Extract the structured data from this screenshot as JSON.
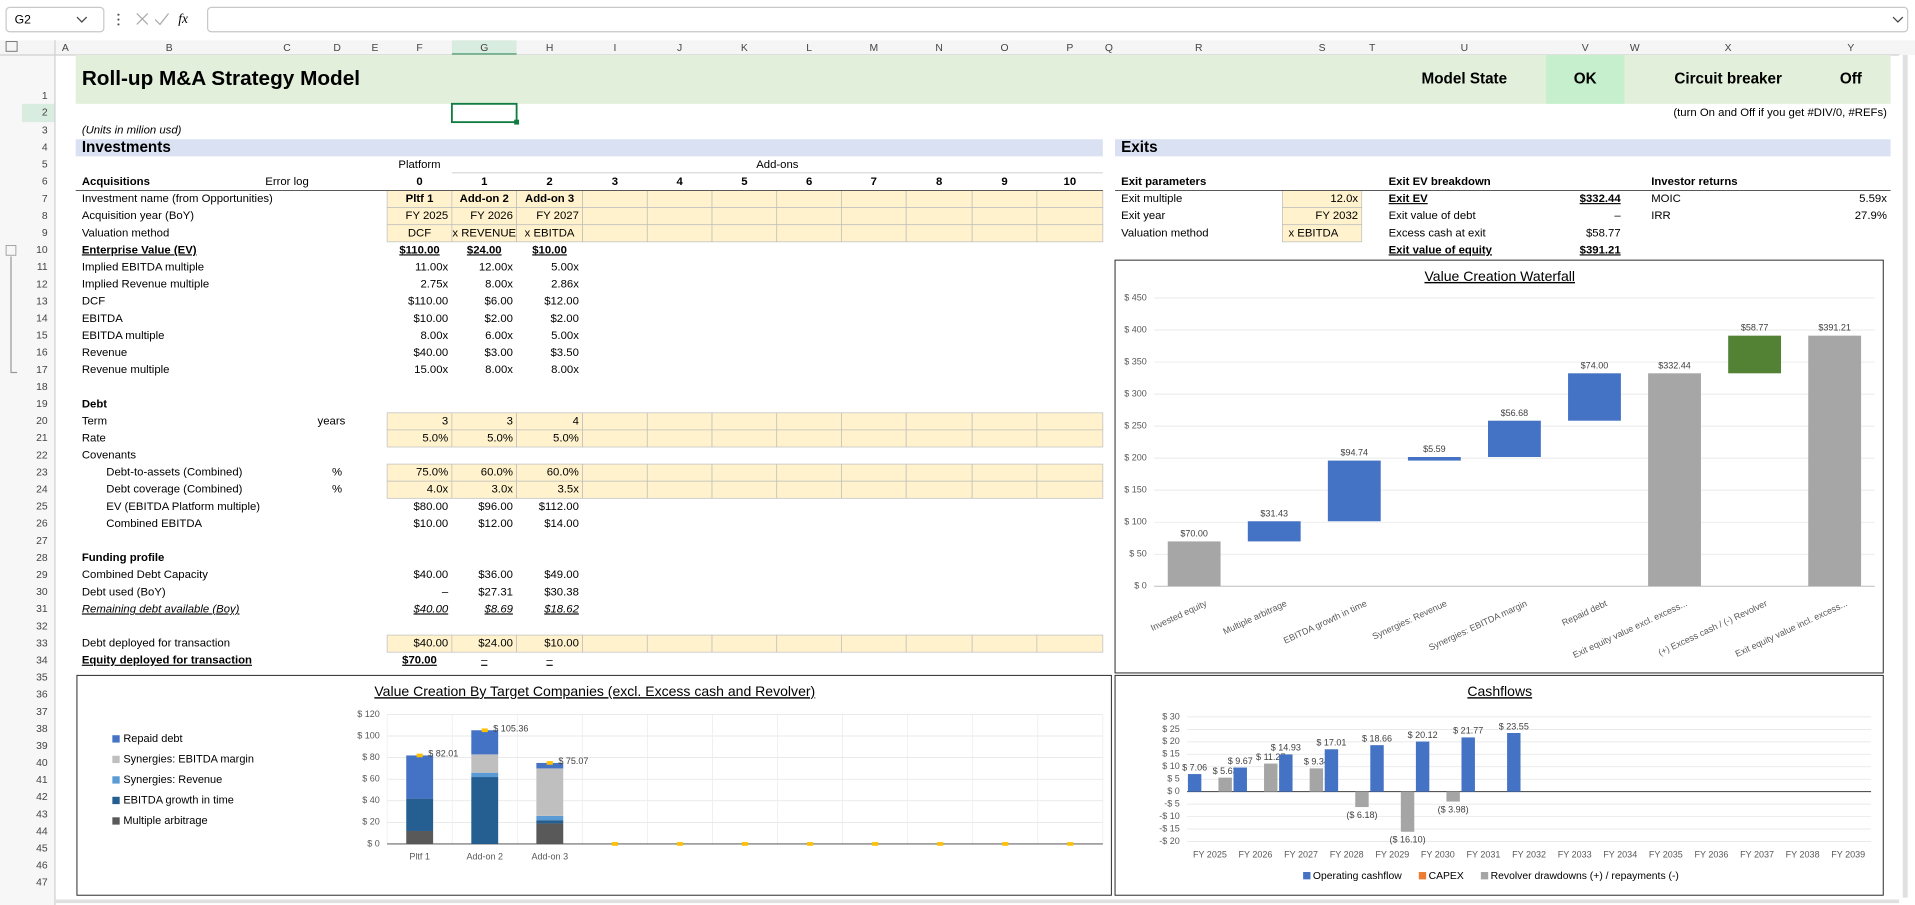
{
  "formula_bar": {
    "name_box": "G2",
    "function_icon": "fx"
  },
  "sheet": {
    "column_headers": [
      "A",
      "B",
      "C",
      "D",
      "E",
      "F",
      "G",
      "H",
      "I",
      "J",
      "K",
      "L",
      "M",
      "N",
      "O",
      "P",
      "Q",
      "R",
      "S",
      "T",
      "U",
      "V",
      "W",
      "X",
      "Y"
    ],
    "row_headers": [
      1,
      2,
      3,
      4,
      5,
      6,
      7,
      8,
      9,
      10,
      11,
      12,
      13,
      14,
      15,
      16,
      17,
      18,
      19,
      20,
      21,
      22,
      23,
      24,
      25,
      26,
      27,
      28,
      29,
      30,
      31,
      32,
      33,
      34,
      35,
      36,
      37,
      38,
      39,
      40,
      41,
      42,
      43,
      44,
      45,
      46,
      47
    ],
    "rows": {
      "1": {
        "B": "Roll-up M&A Strategy Model",
        "U": "Model State",
        "V": "OK",
        "X": "Circuit breaker",
        "Y": "Off"
      },
      "2": {
        "Y": "(turn On and Off if you get #DIV/0, #REFs)"
      },
      "3": {
        "B": "(Units in milion usd)"
      },
      "4": {
        "B": "Investments",
        "R": "Exits"
      },
      "5": {
        "F": "Platform",
        "G": "Add-ons"
      },
      "6": {
        "B": "Acquisitions",
        "C": "Error log",
        "F": 0,
        "G": 1,
        "H": 2,
        "I": 3,
        "J": 4,
        "K": 5,
        "L": 6,
        "M": 7,
        "N": 8,
        "O": 9,
        "P": 10,
        "R": "Exit parameters",
        "U": "Exit EV breakdown",
        "X": "Investor returns"
      },
      "7": {
        "B": "Investment name (from Opportunities)",
        "F": "Pltf 1",
        "G": "Add-on 2",
        "H": "Add-on 3",
        "R": "Exit multiple",
        "S": "12.0x",
        "U": "Exit EV",
        "V": "$332.44",
        "X": "MOIC",
        "Y": "5.59x"
      },
      "8": {
        "B": "Acquisition year (BoY)",
        "F": "FY 2025",
        "G": "FY 2026",
        "H": "FY 2027",
        "R": "Exit year",
        "S": "FY 2032",
        "U": "Exit value of debt",
        "V": "–",
        "X": "IRR",
        "Y": "27.9%"
      },
      "9": {
        "B": "Valuation method",
        "F": "DCF",
        "G": "x REVENUE",
        "H": "x EBITDA",
        "R": "Valuation method",
        "S": "x EBITDA",
        "U": "Excess cash at exit",
        "V": "$58.77"
      },
      "10": {
        "B": "Enterprise Value (EV)",
        "F": "$110.00",
        "G": "$24.00",
        "H": "$10.00",
        "U": "Exit value of equity",
        "V": "$391.21"
      },
      "11": {
        "B": "Implied EBITDA multiple",
        "F": "11.00x",
        "G": "12.00x",
        "H": "5.00x"
      },
      "12": {
        "B": "Implied Revenue multiple",
        "F": "2.75x",
        "G": "8.00x",
        "H": "2.86x"
      },
      "13": {
        "B": "DCF",
        "F": "$110.00",
        "G": "$6.00",
        "H": "$12.00"
      },
      "14": {
        "B": "EBITDA",
        "F": "$10.00",
        "G": "$2.00",
        "H": "$2.00"
      },
      "15": {
        "B": "EBITDA multiple",
        "F": "8.00x",
        "G": "6.00x",
        "H": "5.00x"
      },
      "16": {
        "B": "Revenue",
        "F": "$40.00",
        "G": "$3.00",
        "H": "$3.50"
      },
      "17": {
        "B": "Revenue multiple",
        "F": "15.00x",
        "G": "8.00x",
        "H": "8.00x"
      },
      "19": {
        "B": "Debt"
      },
      "20": {
        "B": "Term",
        "D": "years",
        "F": 3,
        "G": 3,
        "H": 4
      },
      "21": {
        "B": "Rate",
        "F": "5.0%",
        "G": "5.0%",
        "H": "5.0%"
      },
      "22": {
        "B": "Covenants"
      },
      "23": {
        "B": "Debt-to-assets (Combined)",
        "D": "%",
        "F": "75.0%",
        "G": "60.0%",
        "H": "60.0%"
      },
      "24": {
        "B": "Debt coverage (Combined)",
        "D": "%",
        "F": "4.0x",
        "G": "3.0x",
        "H": "3.5x"
      },
      "25": {
        "B": "EV (EBITDA Platform multiple)",
        "F": "$80.00",
        "G": "$96.00",
        "H": "$112.00"
      },
      "26": {
        "B": "Combined EBITDA",
        "F": "$10.00",
        "G": "$12.00",
        "H": "$14.00"
      },
      "28": {
        "B": "Funding profile"
      },
      "29": {
        "B": "Combined Debt Capacity",
        "F": "$40.00",
        "G": "$36.00",
        "H": "$49.00"
      },
      "30": {
        "B": "Debt used (BoY)",
        "F": "–",
        "G": "$27.31",
        "H": "$30.38"
      },
      "31": {
        "B": "Remaining debt available (Boy)",
        "F": "$40.00",
        "G": "$8.69",
        "H": "$18.62"
      },
      "33": {
        "B": "Debt deployed for transaction",
        "F": "$40.00",
        "G": "$24.00",
        "H": "$10.00"
      },
      "34": {
        "B": "Equity deployed for transaction",
        "F": "$70.00",
        "G": "–",
        "H": "–"
      }
    }
  },
  "charts": {
    "waterfall": {
      "type": "waterfall",
      "title": "Value Creation Waterfall",
      "categories": [
        "Invested equity",
        "Multiple arbitrage",
        "EBITDA growth in time",
        "Synergies: Revenue",
        "Synergies: EBITDA margin",
        "Repaid debt",
        "Exit equity value excl. excess...",
        "(+) Excess cash / (-) Revolver",
        "Exit equity value incl. excess..."
      ],
      "values": [
        70,
        31.43,
        94.74,
        5.59,
        56.68,
        74,
        332.44,
        58.77,
        391.21
      ],
      "value_labels": [
        "$70.00",
        "$31.43",
        "$94.74",
        "$5.59",
        "$56.68",
        "$74.00",
        "$332.44",
        "$58.77",
        "$391.21"
      ],
      "bar_kinds": [
        "total",
        "increase",
        "increase",
        "increase",
        "increase",
        "increase",
        "total",
        "increase",
        "total"
      ],
      "colors": [
        "#a6a6a6",
        "#4472c4",
        "#4472c4",
        "#4472c4",
        "#4472c4",
        "#4472c4",
        "#a6a6a6",
        "#548235",
        "#a6a6a6"
      ],
      "ylim": [
        0,
        450
      ],
      "yticks": [
        {
          "value": 0,
          "label": "$ 0"
        },
        {
          "value": 50,
          "label": "$ 50"
        },
        {
          "value": 100,
          "label": "$ 100"
        },
        {
          "value": 150,
          "label": "$ 150"
        },
        {
          "value": 200,
          "label": "$ 200"
        },
        {
          "value": 250,
          "label": "$ 250"
        },
        {
          "value": 300,
          "label": "$ 300"
        },
        {
          "value": 350,
          "label": "$ 350"
        },
        {
          "value": 400,
          "label": "$ 400"
        },
        {
          "value": 450,
          "label": "$ 450"
        }
      ],
      "grid": true
    },
    "targets": {
      "type": "stacked_bar",
      "title": "Value Creation By Target Companies (excl. Excess cash and Revolver)",
      "categories": [
        "Pltf 1",
        "Add-on 2",
        "Add-on 3",
        null,
        null,
        null,
        null,
        null,
        null,
        null,
        null
      ],
      "series": [
        {
          "name": "Multiple arbitrage",
          "color": "#595959",
          "values": [
            12,
            0,
            19,
            null,
            null,
            null,
            null,
            null,
            null,
            null,
            null
          ]
        },
        {
          "name": "EBITDA growth in time",
          "color": "#255e91",
          "values": [
            30.01,
            62,
            3,
            null,
            null,
            null,
            null,
            null,
            null,
            null,
            null
          ]
        },
        {
          "name": "Synergies: Revenue",
          "color": "#5b9bd5",
          "values": [
            0,
            4,
            4,
            null,
            null,
            null,
            null,
            null,
            null,
            null,
            null
          ]
        },
        {
          "name": "Synergies: EBITDA margin",
          "color": "#bfbfbf",
          "values": [
            0,
            17,
            44,
            null,
            null,
            null,
            null,
            null,
            null,
            null,
            null
          ]
        },
        {
          "name": "Repaid debt",
          "color": "#4472c4",
          "values": [
            40,
            22.36,
            5.07,
            null,
            null,
            null,
            null,
            null,
            null,
            null,
            null
          ]
        }
      ],
      "totals": {
        "color": "#ffc000",
        "values": [
          82.01,
          105.36,
          75.07,
          0,
          0,
          0,
          0,
          0,
          0,
          0,
          0
        ],
        "value_labels": [
          "$ 82.01",
          "$ 105.36",
          "$ 75.07",
          null,
          null,
          null,
          null,
          null,
          null,
          null,
          null
        ]
      },
      "ylim": [
        0,
        120
      ],
      "yticks": [
        {
          "value": 0,
          "label": "$ 0"
        },
        {
          "value": 20,
          "label": "$ 20"
        },
        {
          "value": 40,
          "label": "$ 40"
        },
        {
          "value": 60,
          "label": "$ 60"
        },
        {
          "value": 80,
          "label": "$ 80"
        },
        {
          "value": 100,
          "label": "$ 100"
        },
        {
          "value": 120,
          "label": "$ 120"
        }
      ],
      "grid": true
    },
    "cashflows": {
      "type": "grouped_bar",
      "title": "Cashflows",
      "categories": [
        "FY 2025",
        "FY 2026",
        "FY 2027",
        "FY 2028",
        "FY 2029",
        "FY 2030",
        "FY 2031",
        "FY 2032",
        "FY 2033",
        "FY 2034",
        "FY 2035",
        "FY 2036",
        "FY 2037",
        "FY 2038",
        "FY 2039"
      ],
      "series": [
        {
          "name": "Operating cashflow",
          "color": "#4472c4",
          "values": [
            7.06,
            9.67,
            14.93,
            17.01,
            18.66,
            20.12,
            21.77,
            23.55,
            null,
            null,
            null,
            null,
            null,
            null,
            null
          ],
          "value_labels": [
            "$ 7.06",
            "$ 9.67",
            "$ 14.93",
            "$ 17.01",
            "$ 18.66",
            "$ 20.12",
            "$ 21.77",
            "$ 23.55",
            null,
            null,
            null,
            null,
            null,
            null,
            null
          ]
        },
        {
          "name": "CAPEX",
          "color": "#ed7d31",
          "values": [
            null,
            null,
            null,
            null,
            null,
            null,
            null,
            null,
            null,
            null,
            null,
            null,
            null,
            null,
            null
          ]
        },
        {
          "name": "Revolver  drawdowns (+) / repayments (-)",
          "color": "#a5a5a5",
          "values": [
            5.63,
            11.27,
            9.34,
            -6.18,
            -16.1,
            -3.98,
            null,
            null,
            null,
            null,
            null,
            null,
            null,
            null,
            null
          ],
          "value_labels": [
            "$ 5.63",
            "$ 11.27",
            "$ 9.34",
            "($ 6.18)",
            "($ 16.10)",
            "($ 3.98)",
            null,
            null,
            null,
            null,
            null,
            null,
            null,
            null,
            null
          ]
        }
      ],
      "ylim": [
        -20,
        30
      ],
      "yticks": [
        {
          "value": 30,
          "label": "$ 30"
        },
        {
          "value": 25,
          "label": "$ 25"
        },
        {
          "value": 20,
          "label": "$ 20"
        },
        {
          "value": 15,
          "label": "$ 15"
        },
        {
          "value": 10,
          "label": "$ 10"
        },
        {
          "value": 5,
          "label": "$ 5"
        },
        {
          "value": 0,
          "label": "$ 0"
        },
        {
          "value": -5,
          "label": "-$ 5"
        },
        {
          "value": -10,
          "label": "-$ 10"
        },
        {
          "value": -15,
          "label": "-$ 15"
        },
        {
          "value": -20,
          "label": "-$ 20"
        }
      ],
      "grid": true
    }
  }
}
